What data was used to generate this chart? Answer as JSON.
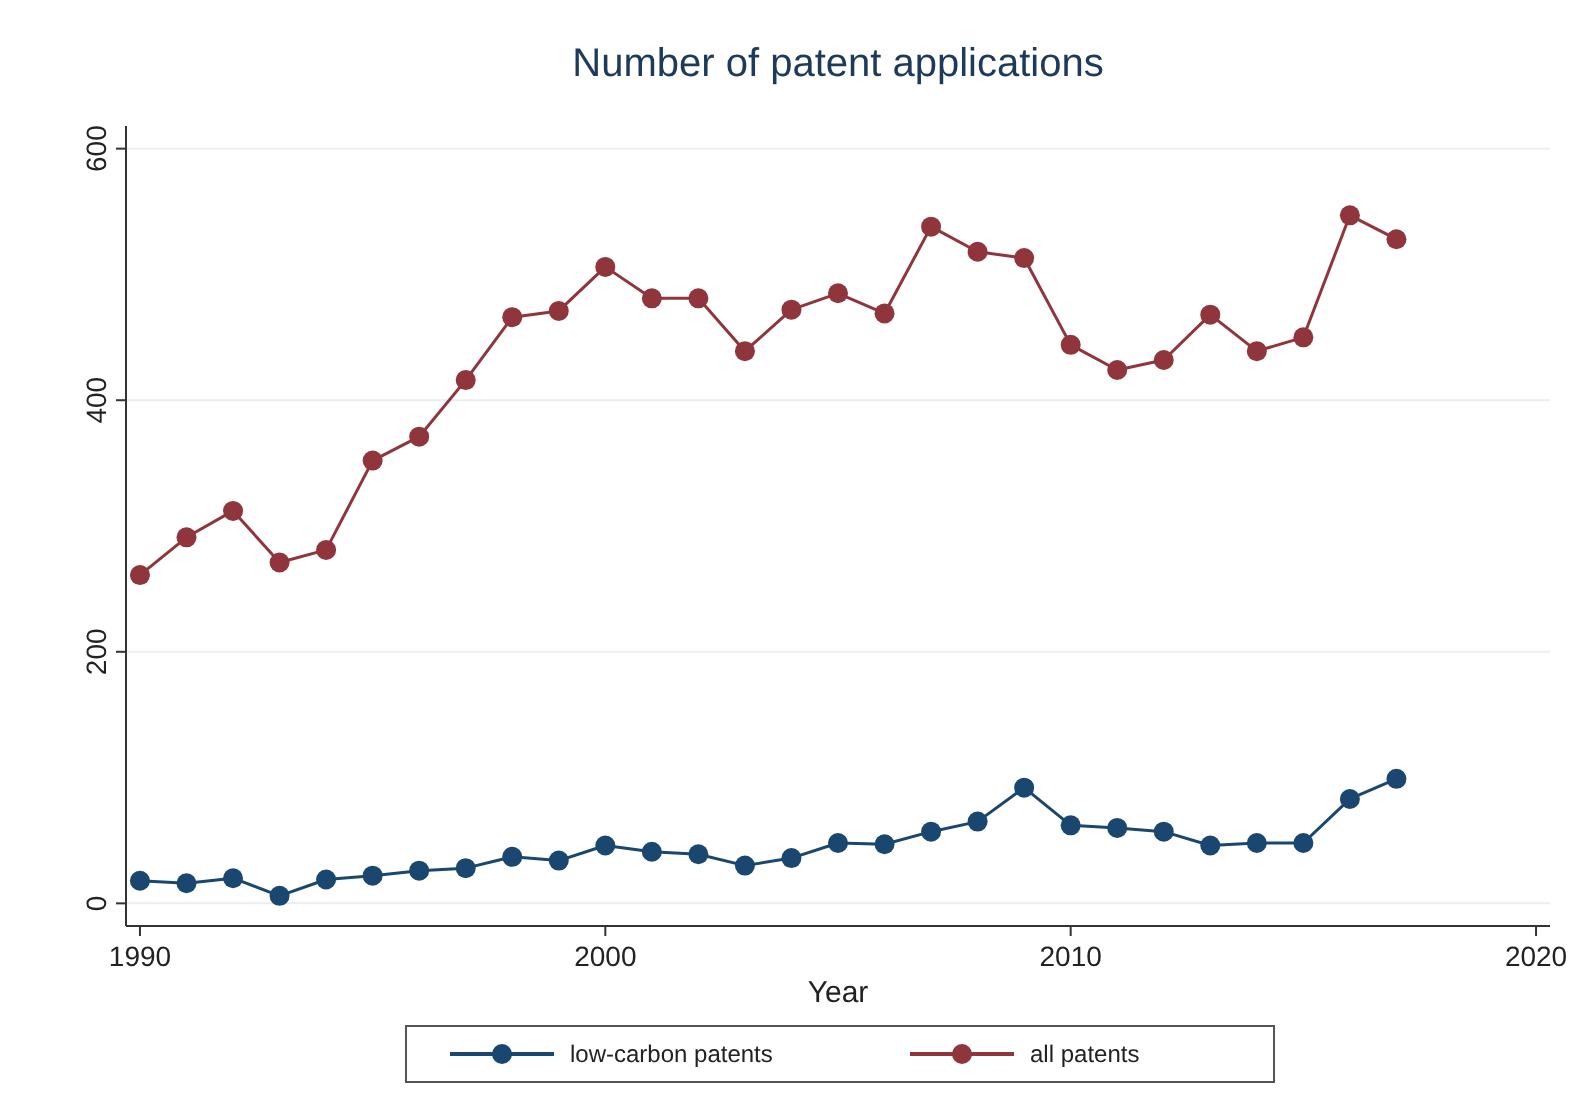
{
  "chart_data": {
    "type": "line",
    "title": "Number of patent applications",
    "xlabel": "Year",
    "x": [
      1990,
      1991,
      1992,
      1993,
      1994,
      1995,
      1996,
      1997,
      1998,
      1999,
      2000,
      2001,
      2002,
      2003,
      2004,
      2005,
      2006,
      2007,
      2008,
      2009,
      2010,
      2011,
      2012,
      2013,
      2014,
      2015,
      2016,
      2017
    ],
    "series": [
      {
        "name": "low-carbon patents",
        "color": "#1a476f",
        "values": [
          18,
          16,
          20,
          6,
          19,
          22,
          26,
          28,
          37,
          34,
          46,
          41,
          39,
          30,
          36,
          48,
          47,
          57,
          65,
          92,
          62,
          60,
          57,
          46,
          48,
          48,
          83,
          99
        ]
      },
      {
        "name": "all patents",
        "color": "#90353b",
        "values": [
          261,
          291,
          312,
          271,
          281,
          352,
          371,
          416,
          466,
          471,
          506,
          481,
          481,
          439,
          472,
          485,
          469,
          538,
          518,
          513,
          444,
          424,
          432,
          468,
          439,
          450,
          547,
          528
        ]
      }
    ],
    "xlim": [
      1989.7,
      2020.3
    ],
    "xticks": [
      1990,
      2000,
      2010,
      2020
    ],
    "ylim": [
      -18,
      618
    ],
    "yticks": [
      0,
      200,
      400,
      600
    ],
    "grid": "y",
    "legend": "bottom",
    "marker": "circle",
    "line_style": "solid"
  }
}
